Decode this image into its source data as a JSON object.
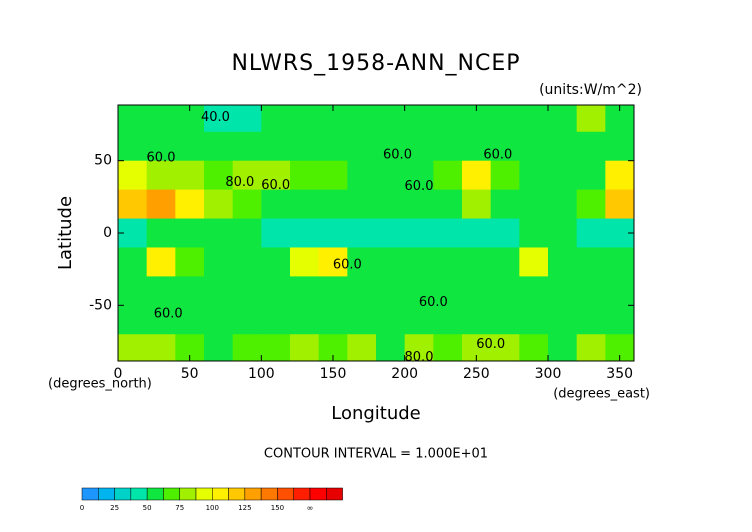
{
  "chart_data": {
    "type": "contour",
    "title": "NLWRS_1958-ANN_NCEP",
    "subtitle": "(units:W/m^2)",
    "x_label": "Longitude",
    "y_label": "Latitude",
    "x_unit_label": "(degrees_east)",
    "y_unit_label": "(degrees_north)",
    "footnote": "CONTOUR INTERVAL = 1.000E+01",
    "xlim": [
      0,
      360
    ],
    "ylim": [
      -88.5,
      88.5
    ],
    "xticks": [
      0,
      50,
      100,
      150,
      200,
      250,
      300,
      350
    ],
    "yticks": [
      -50,
      0,
      50
    ],
    "x": [
      10,
      30,
      50,
      70,
      90,
      110,
      130,
      150,
      170,
      190,
      210,
      230,
      250,
      270,
      290,
      310,
      330,
      350
    ],
    "y": [
      80,
      60,
      40,
      20,
      0,
      -20,
      -40,
      -60,
      -80
    ],
    "cell_size": 20,
    "z": [
      [
        50,
        52,
        50,
        48,
        48,
        50,
        50,
        52,
        50,
        50,
        50,
        50,
        52,
        55,
        55,
        60,
        75,
        60
      ],
      [
        62,
        58,
        55,
        55,
        55,
        60,
        58,
        55,
        58,
        55,
        58,
        62,
        60,
        58,
        60,
        62,
        60,
        60
      ],
      [
        95,
        85,
        75,
        70,
        85,
        80,
        70,
        65,
        60,
        60,
        60,
        65,
        100,
        70,
        62,
        62,
        60,
        110
      ],
      [
        120,
        125,
        110,
        80,
        65,
        60,
        60,
        60,
        60,
        60,
        60,
        60,
        75,
        60,
        58,
        60,
        65,
        120
      ],
      [
        45,
        60,
        60,
        55,
        60,
        45,
        45,
        42,
        45,
        42,
        42,
        42,
        45,
        45,
        50,
        55,
        45,
        45
      ],
      [
        60,
        100,
        65,
        60,
        60,
        60,
        95,
        105,
        60,
        58,
        60,
        58,
        60,
        58,
        90,
        60,
        60,
        60
      ],
      [
        60,
        62,
        60,
        60,
        60,
        62,
        60,
        62,
        60,
        60,
        60,
        58,
        58,
        58,
        62,
        60,
        60,
        60
      ],
      [
        55,
        55,
        52,
        55,
        55,
        55,
        55,
        55,
        55,
        55,
        55,
        55,
        55,
        55,
        55,
        55,
        55,
        55
      ],
      [
        80,
        75,
        70,
        60,
        70,
        65,
        80,
        70,
        75,
        60,
        80,
        70,
        75,
        75,
        65,
        60,
        75,
        70
      ]
    ],
    "annotations": [
      {
        "text": "40.0",
        "x": 68,
        "y": 80
      },
      {
        "text": "60.0",
        "x": 30,
        "y": 52
      },
      {
        "text": "60.0",
        "x": 110,
        "y": 33
      },
      {
        "text": "60.0",
        "x": 195,
        "y": 54
      },
      {
        "text": "60.0",
        "x": 265,
        "y": 54
      },
      {
        "text": "60.0",
        "x": 210,
        "y": 32
      },
      {
        "text": "80.0",
        "x": 85,
        "y": 35
      },
      {
        "text": "60.0",
        "x": 160,
        "y": -22
      },
      {
        "text": "60.0",
        "x": 220,
        "y": -48
      },
      {
        "text": "60.0",
        "x": 35,
        "y": -56
      },
      {
        "text": "60.0",
        "x": 260,
        "y": -77
      },
      {
        "text": "80.0",
        "x": 210,
        "y": -86
      }
    ],
    "colorbar": {
      "levels": [
        0,
        25,
        50,
        75,
        100,
        125,
        150
      ],
      "end_label": "∞",
      "step": 12.5,
      "colors": [
        "#1e96ff",
        "#00b4f0",
        "#00d2c8",
        "#00e6aa",
        "#10e640",
        "#4ef000",
        "#a0f000",
        "#e6ff00",
        "#fff000",
        "#ffc800",
        "#ffa000",
        "#ff7800",
        "#ff5000",
        "#ff1e00",
        "#ff0000",
        "#e60000"
      ]
    }
  }
}
